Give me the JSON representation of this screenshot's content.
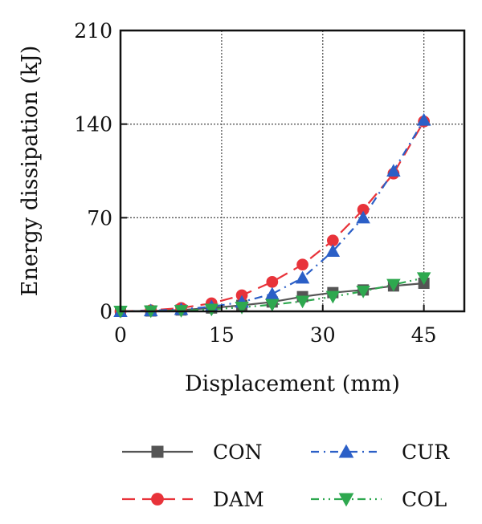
{
  "chart_data": {
    "type": "line",
    "title": "",
    "xlabel": "Displacement (mm)",
    "ylabel": "Energy dissipation (kJ)",
    "xlim": [
      0,
      51
    ],
    "ylim": [
      0,
      210
    ],
    "xticks": [
      0,
      15,
      30,
      45
    ],
    "yticks": [
      0,
      70,
      140,
      210
    ],
    "grid": true,
    "legend_position": "bottom",
    "series": [
      {
        "name": "CON",
        "color": "#555555",
        "marker": "square",
        "line_style": "solid",
        "x": [
          0,
          4.5,
          9,
          13.5,
          18,
          22.5,
          27,
          31.5,
          36,
          40.5,
          45
        ],
        "y": [
          0,
          0.3,
          1,
          2.5,
          4.5,
          7,
          11,
          14,
          16,
          19,
          21
        ]
      },
      {
        "name": "DAM",
        "color": "#e8333a",
        "marker": "circle",
        "line_style": "dashed",
        "x": [
          0,
          4.5,
          9,
          13.5,
          18,
          22.5,
          27,
          31.5,
          36,
          40.5,
          45
        ],
        "y": [
          0,
          0.8,
          2.5,
          6,
          12,
          22,
          35,
          53,
          76,
          103,
          142
        ]
      },
      {
        "name": "CUR",
        "color": "#2b5fc7",
        "marker": "triangle-up",
        "line_style": "dashdot",
        "x": [
          0,
          4.5,
          9,
          13.5,
          18,
          22.5,
          27,
          31.5,
          36,
          40.5,
          45
        ],
        "y": [
          0,
          0.5,
          1.5,
          3.5,
          7,
          13,
          25,
          45,
          70,
          105,
          143
        ]
      },
      {
        "name": "COL",
        "color": "#2ea84f",
        "marker": "triangle-down",
        "line_style": "dashdotdot",
        "x": [
          0,
          4.5,
          9,
          13.5,
          18,
          22.5,
          27,
          31.5,
          36,
          40.5,
          45
        ],
        "y": [
          0,
          0.2,
          0.5,
          1.5,
          3,
          5,
          7.5,
          11,
          15,
          20,
          25
        ]
      }
    ]
  }
}
